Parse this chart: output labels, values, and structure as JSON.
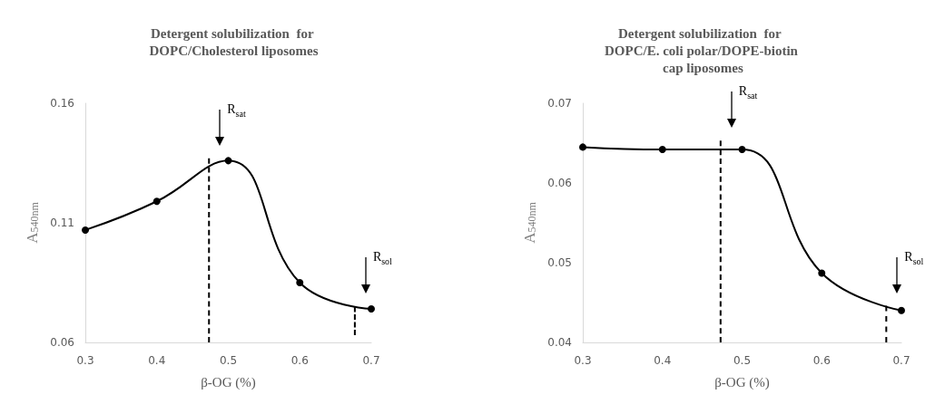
{
  "chart_data": [
    {
      "type": "line",
      "title": "Detergent solubilization  for DOPC/Cholesterol liposomes",
      "xlabel": "β-OG (%)",
      "ylabel": "A$_{540nm}$",
      "xlim": [
        0.3,
        0.7
      ],
      "xticks": [
        0.3,
        0.4,
        0.5,
        0.6,
        0.7
      ],
      "ylim": [
        0.06,
        0.16
      ],
      "yticks": [
        0.06,
        0.11,
        0.16
      ],
      "grid": false,
      "series": [
        {
          "x": [
            0.3,
            0.4,
            0.5,
            0.6,
            0.7
          ],
          "values": [
            0.107,
            0.119,
            0.136,
            0.085,
            0.074
          ],
          "color": "#000000",
          "marker": "circle",
          "line_style": "solid"
        },
        {
          "x": [
            0.473,
            0.473
          ],
          "values": [
            0.06,
            0.137
          ],
          "color": "#000000",
          "marker": "none",
          "line_style": "dashed"
        },
        {
          "x": [
            0.677,
            0.677
          ],
          "values": [
            0.063,
            0.075
          ],
          "color": "#000000",
          "marker": "none",
          "line_style": "dashed"
        }
      ],
      "annotations": [
        "R$_{sat}$",
        "R$_{sol}$"
      ]
    },
    {
      "type": "line",
      "title": "Detergent solubilization  for DOPC/E. coli polar/DOPE-biotin cap liposomes",
      "xlabel": "β-OG (%)",
      "ylabel": "A$_{540nm}$",
      "xlim": [
        0.3,
        0.7
      ],
      "xticks": [
        0.3,
        0.4,
        0.5,
        0.6,
        0.7
      ],
      "ylim": [
        0.04,
        0.07
      ],
      "yticks": [
        0.04,
        0.05,
        0.06,
        0.07
      ],
      "grid": false,
      "series": [
        {
          "x": [
            0.3,
            0.4,
            0.5,
            0.6,
            0.7
          ],
          "values": [
            0.0645,
            0.0642,
            0.0642,
            0.0487,
            0.044
          ],
          "color": "#000000",
          "marker": "circle",
          "line_style": "solid"
        },
        {
          "x": [
            0.473,
            0.473
          ],
          "values": [
            0.04,
            0.0653
          ],
          "color": "#000000",
          "marker": "none",
          "line_style": "dashed"
        },
        {
          "x": [
            0.681,
            0.681
          ],
          "values": [
            0.04,
            0.0446
          ],
          "color": "#000000",
          "marker": "none",
          "line_style": "dashed"
        }
      ],
      "annotations": [
        "R$_{sat}$",
        "R$_{sol}$"
      ]
    }
  ]
}
